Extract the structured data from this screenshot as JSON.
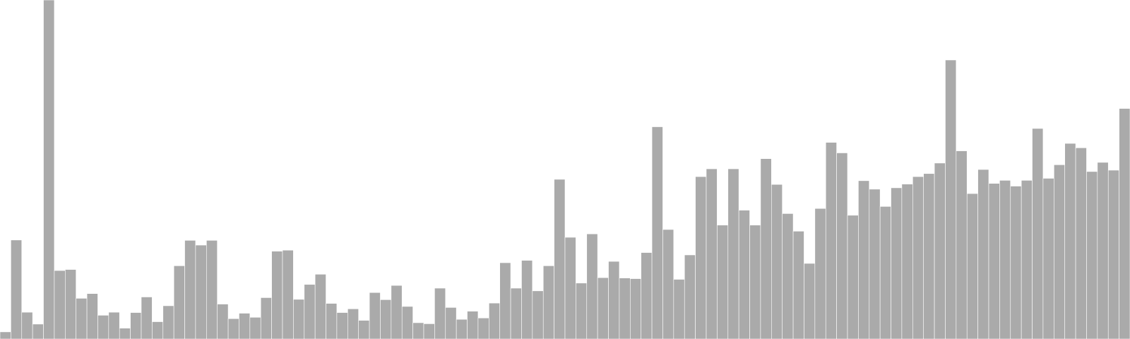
{
  "colors": {
    "bar_fill": "#aaaaaa",
    "bar_stroke": "#ffffff",
    "background": "#ffffff"
  },
  "chart_data": {
    "type": "bar",
    "title": "",
    "xlabel": "",
    "ylabel": "",
    "axes_visible": false,
    "grid": false,
    "legend": "none",
    "ylim": [
      0,
      100
    ],
    "values": [
      2.1,
      29.2,
      7.9,
      4.4,
      100.0,
      20.2,
      20.5,
      12.0,
      13.4,
      7.0,
      7.9,
      3.2,
      7.8,
      12.4,
      5.1,
      9.8,
      21.6,
      29.1,
      27.7,
      29.1,
      10.3,
      6.0,
      7.6,
      6.4,
      12.2,
      25.9,
      26.2,
      11.7,
      16.1,
      19.1,
      10.5,
      7.8,
      8.9,
      5.5,
      13.7,
      11.6,
      15.8,
      9.6,
      4.8,
      4.5,
      15.0,
      9.3,
      5.8,
      8.2,
      6.2,
      10.6,
      22.5,
      15.0,
      23.2,
      14.2,
      21.6,
      47.1,
      30.0,
      16.5,
      31.0,
      18.1,
      22.9,
      18.0,
      17.8,
      25.5,
      62.6,
      32.3,
      17.6,
      24.8,
      47.9,
      50.2,
      33.6,
      50.2,
      38.0,
      33.6,
      53.2,
      45.6,
      37.0,
      31.8,
      22.3,
      38.5,
      58.0,
      54.9,
      36.5,
      46.7,
      44.2,
      39.1,
      44.6,
      45.7,
      47.9,
      48.8,
      51.9,
      82.3,
      55.5,
      42.9,
      50.0,
      45.9,
      46.8,
      45.1,
      46.8,
      62.1,
      47.4,
      51.4,
      57.7,
      56.4,
      49.4,
      52.1,
      49.8,
      68.0
    ]
  }
}
